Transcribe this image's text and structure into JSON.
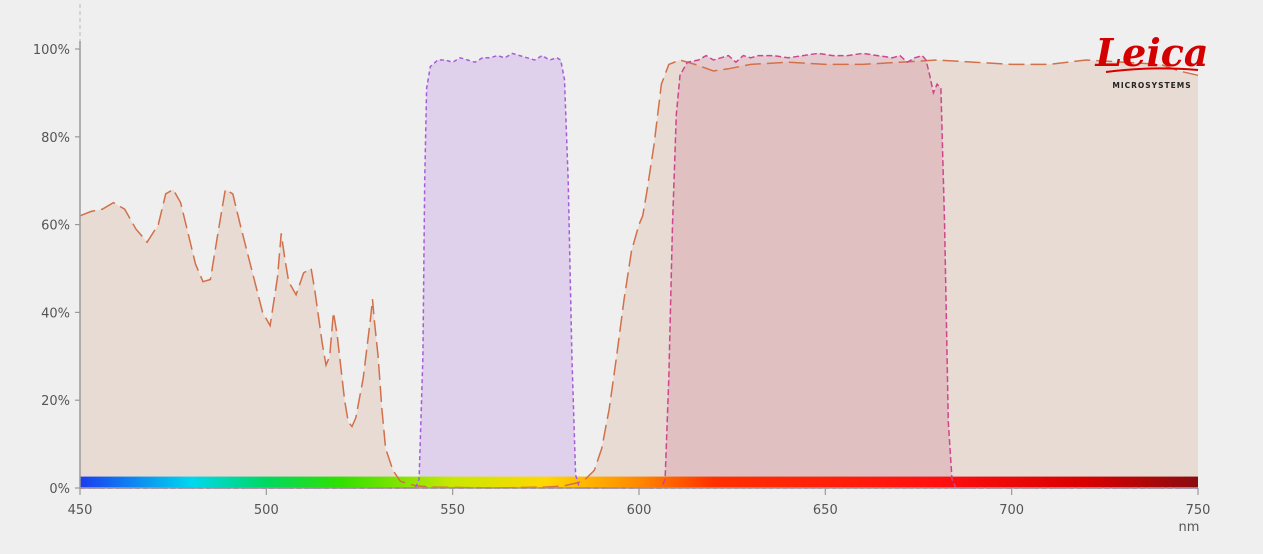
{
  "chart_data": {
    "type": "area",
    "xlabel": "nm",
    "ylabel": "",
    "xlim": [
      450,
      750
    ],
    "ylim": [
      0,
      100
    ],
    "x_ticks": [
      450,
      500,
      550,
      600,
      650,
      700,
      750
    ],
    "y_ticks": [
      0,
      20,
      40,
      60,
      80,
      100
    ],
    "y_tick_format": "%",
    "grid": false,
    "logo": {
      "name": "Leica",
      "subtitle": "MICROSYSTEMS",
      "color": "#d40000"
    },
    "spectrum_bar": {
      "range": [
        450,
        750
      ],
      "height_pct": 2.6
    },
    "series": [
      {
        "name": "",
        "color": "#d2704a",
        "fill": "rgba(222,195,180,0.45)",
        "dash": "16 6",
        "points": [
          [
            450,
            62
          ],
          [
            453,
            63
          ],
          [
            456,
            63.5
          ],
          [
            459,
            65
          ],
          [
            462,
            63.5
          ],
          [
            465,
            59
          ],
          [
            468,
            56
          ],
          [
            471,
            60
          ],
          [
            473,
            67
          ],
          [
            475,
            68
          ],
          [
            477,
            65
          ],
          [
            479,
            58
          ],
          [
            481,
            51
          ],
          [
            483,
            47
          ],
          [
            485,
            47.5
          ],
          [
            487,
            58
          ],
          [
            489,
            68
          ],
          [
            491,
            67
          ],
          [
            493,
            60
          ],
          [
            496,
            50
          ],
          [
            499,
            40
          ],
          [
            501,
            37
          ],
          [
            503,
            48
          ],
          [
            504,
            58
          ],
          [
            505,
            52
          ],
          [
            506,
            47
          ],
          [
            508,
            44
          ],
          [
            510,
            49
          ],
          [
            512,
            50
          ],
          [
            513,
            45
          ],
          [
            515,
            33
          ],
          [
            516,
            28
          ],
          [
            517,
            30
          ],
          [
            518,
            40
          ],
          [
            519,
            35
          ],
          [
            521,
            20
          ],
          [
            522,
            15
          ],
          [
            523,
            14
          ],
          [
            524,
            16
          ],
          [
            526,
            25
          ],
          [
            528,
            39
          ],
          [
            528.5,
            43
          ],
          [
            529,
            38
          ],
          [
            530,
            30
          ],
          [
            531,
            18
          ],
          [
            532,
            9
          ],
          [
            534,
            4
          ],
          [
            536,
            1.5
          ],
          [
            540,
            0.5
          ],
          [
            545,
            0.2
          ],
          [
            560,
            0
          ],
          [
            575,
            0.2
          ],
          [
            580,
            0.5
          ],
          [
            585,
            1.5
          ],
          [
            588,
            4
          ],
          [
            590,
            9
          ],
          [
            592,
            18
          ],
          [
            594,
            30
          ],
          [
            596,
            43
          ],
          [
            598,
            54
          ],
          [
            600,
            60
          ],
          [
            601,
            62
          ],
          [
            602,
            67
          ],
          [
            604,
            78
          ],
          [
            606,
            92
          ],
          [
            608,
            96.5
          ],
          [
            611,
            97.5
          ],
          [
            615,
            96.5
          ],
          [
            620,
            95
          ],
          [
            624,
            95.5
          ],
          [
            630,
            96.5
          ],
          [
            640,
            97
          ],
          [
            650,
            96.5
          ],
          [
            660,
            96.5
          ],
          [
            670,
            97
          ],
          [
            680,
            97.5
          ],
          [
            690,
            97
          ],
          [
            700,
            96.5
          ],
          [
            710,
            96.5
          ],
          [
            720,
            97.5
          ],
          [
            730,
            97
          ],
          [
            740,
            96.5
          ],
          [
            745,
            95
          ],
          [
            750,
            94
          ]
        ]
      },
      {
        "name": "",
        "color": "#a65ed8",
        "fill": "rgba(205,170,230,0.45)",
        "dash": "4 3",
        "points": [
          [
            450,
            0
          ],
          [
            540,
            0
          ],
          [
            541,
            2
          ],
          [
            542,
            30
          ],
          [
            542.5,
            70
          ],
          [
            543,
            91
          ],
          [
            544,
            96
          ],
          [
            546,
            97.5
          ],
          [
            548,
            97.5
          ],
          [
            550,
            97
          ],
          [
            552,
            98
          ],
          [
            554,
            97.5
          ],
          [
            556,
            97
          ],
          [
            558,
            98
          ],
          [
            560,
            98
          ],
          [
            562,
            98.5
          ],
          [
            564,
            98
          ],
          [
            566,
            99
          ],
          [
            568,
            98.5
          ],
          [
            570,
            98
          ],
          [
            572,
            97.5
          ],
          [
            574,
            98.5
          ],
          [
            576,
            97.5
          ],
          [
            578,
            98
          ],
          [
            579,
            97.5
          ],
          [
            580,
            93
          ],
          [
            581,
            70
          ],
          [
            582,
            30
          ],
          [
            583,
            3
          ],
          [
            584,
            0
          ],
          [
            750,
            0
          ]
        ]
      },
      {
        "name": "",
        "color": "#d0458e",
        "fill": "rgba(215,160,170,0.45)",
        "dash": "6 3",
        "points": [
          [
            450,
            0
          ],
          [
            606,
            0
          ],
          [
            607,
            2
          ],
          [
            608,
            25
          ],
          [
            609,
            60
          ],
          [
            610,
            85
          ],
          [
            611,
            94
          ],
          [
            613,
            97
          ],
          [
            616,
            97.5
          ],
          [
            618,
            98.5
          ],
          [
            620,
            97.5
          ],
          [
            622,
            98
          ],
          [
            624,
            98.5
          ],
          [
            626,
            97
          ],
          [
            628,
            98.5
          ],
          [
            630,
            98
          ],
          [
            632,
            98.5
          ],
          [
            636,
            98.5
          ],
          [
            640,
            98
          ],
          [
            644,
            98.5
          ],
          [
            648,
            99
          ],
          [
            652,
            98.5
          ],
          [
            656,
            98.5
          ],
          [
            660,
            99
          ],
          [
            664,
            98.5
          ],
          [
            668,
            98
          ],
          [
            670,
            98.5
          ],
          [
            672,
            97
          ],
          [
            674,
            98
          ],
          [
            676,
            98.5
          ],
          [
            677,
            97.5
          ],
          [
            678,
            94
          ],
          [
            679,
            90
          ],
          [
            680,
            92
          ],
          [
            681,
            91
          ],
          [
            682,
            60
          ],
          [
            683,
            15
          ],
          [
            684,
            2
          ],
          [
            685,
            0
          ],
          [
            750,
            0
          ]
        ]
      }
    ]
  }
}
